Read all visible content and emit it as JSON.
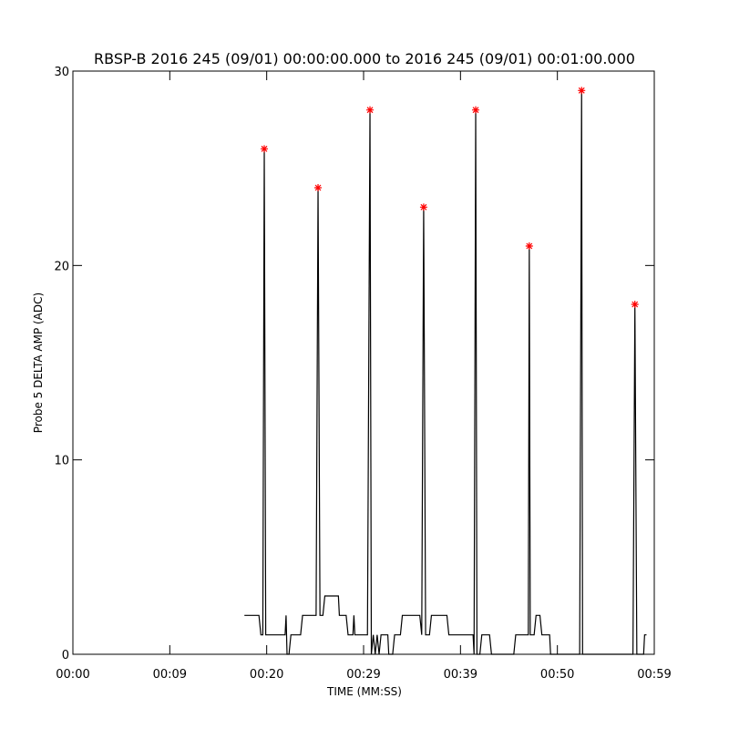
{
  "chart_data": {
    "type": "line",
    "title": "RBSP-B 2016 245 (09/01) 00:00:00.000 to 2016 245 (09/01) 00:01:00.000",
    "xlabel": "TIME (MM:SS)",
    "ylabel": "Probe 5 DELTA AMP (ADC)",
    "xlim": [
      0,
      60
    ],
    "ylim": [
      0,
      30
    ],
    "xticks": [
      {
        "value": 0,
        "label": "00:00"
      },
      {
        "value": 10,
        "label": "00:09"
      },
      {
        "value": 20,
        "label": "00:20"
      },
      {
        "value": 30,
        "label": "00:29"
      },
      {
        "value": 40,
        "label": "00:39"
      },
      {
        "value": 50,
        "label": "00:50"
      },
      {
        "value": 60,
        "label": "00:59"
      }
    ],
    "yticks": [
      0,
      10,
      20,
      30
    ],
    "series": [
      {
        "type": "line",
        "color": "#000000",
        "x": [
          17.7,
          19.2,
          19.4,
          19.6,
          19.75,
          19.9,
          21.9,
          22.0,
          22.1,
          22.3,
          22.5,
          23.5,
          23.7,
          25.1,
          25.3,
          25.5,
          25.8,
          26.0,
          27.4,
          27.5,
          28.2,
          28.4,
          28.9,
          29.0,
          29.1,
          30.4,
          30.66,
          30.8,
          31.0,
          31.2,
          31.4,
          31.6,
          31.8,
          32.5,
          32.6,
          33.0,
          33.2,
          33.8,
          34.0,
          35.8,
          36.0,
          36.2,
          36.4,
          36.8,
          37.0,
          38.6,
          38.8,
          41.3,
          41.4,
          41.57,
          41.7,
          42.0,
          42.2,
          43.0,
          43.2,
          45.5,
          45.7,
          47.0,
          47.1,
          47.2,
          47.6,
          47.8,
          48.2,
          48.4,
          49.2,
          49.3,
          52.3,
          52.5,
          52.6,
          57.8,
          58.0,
          58.2,
          58.9,
          59.0,
          59.2
        ],
        "values": [
          2,
          2,
          1,
          1,
          26,
          1,
          1,
          2,
          0,
          0,
          1,
          1,
          2,
          2,
          24,
          2,
          2,
          3,
          3,
          2,
          2,
          1,
          1,
          2,
          1,
          1,
          28,
          0,
          1,
          0,
          1,
          0,
          1,
          1,
          0,
          0,
          1,
          1,
          2,
          2,
          1,
          23,
          1,
          1,
          2,
          2,
          1,
          1,
          0,
          28,
          0,
          0,
          1,
          1,
          0,
          0,
          1,
          1,
          21,
          1,
          1,
          2,
          2,
          1,
          1,
          0,
          0,
          29,
          0,
          0,
          18,
          0,
          0,
          1,
          1
        ]
      },
      {
        "type": "scatter",
        "color": "#ff0000",
        "x": [
          19.75,
          25.3,
          30.66,
          36.2,
          41.57,
          47.1,
          52.5,
          58.0
        ],
        "values": [
          26,
          24,
          28,
          23,
          28,
          21,
          29,
          18
        ]
      }
    ]
  }
}
